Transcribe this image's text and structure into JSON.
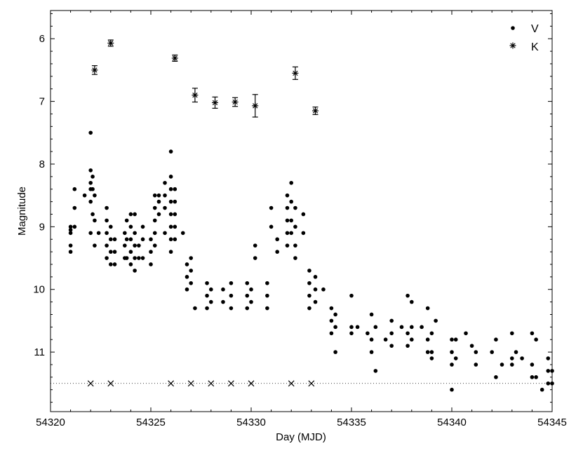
{
  "chart_data": {
    "type": "scatter",
    "xlabel": "Day (MJD)",
    "ylabel": "Magnitude",
    "xlim": [
      54320,
      54345
    ],
    "ylim": [
      5.55,
      11.95
    ],
    "y_inverted": true,
    "grid": false,
    "legend_position": "top-right",
    "x_ticks": [
      "54320",
      "54325",
      "54330",
      "54335",
      "54340",
      "54345"
    ],
    "y_ticks": [
      "6",
      "7",
      "8",
      "9",
      "10",
      "11"
    ],
    "x_tick_values": [
      54320,
      54325,
      54330,
      54335,
      54340,
      54345
    ],
    "y_tick_values": [
      6,
      7,
      8,
      9,
      10,
      11
    ],
    "series": [
      {
        "name": "V",
        "marker": "dot",
        "columns": [
          {
            "x": 54321.0,
            "y": [
              9.0,
              9.05,
              9.1,
              9.3,
              9.4
            ]
          },
          {
            "x": 54321.2,
            "y": [
              8.4,
              8.7,
              9.0
            ]
          },
          {
            "x": 54321.7,
            "y": [
              8.5
            ]
          },
          {
            "x": 54322.0,
            "y": [
              7.5,
              8.1,
              8.3,
              8.4,
              8.6,
              9.1
            ]
          },
          {
            "x": 54322.1,
            "y": [
              8.2,
              8.4,
              8.8
            ]
          },
          {
            "x": 54322.2,
            "y": [
              8.5,
              8.9,
              9.3
            ]
          },
          {
            "x": 54322.4,
            "y": [
              9.1
            ]
          },
          {
            "x": 54322.8,
            "y": [
              8.7,
              8.9,
              9.1,
              9.3,
              9.5
            ]
          },
          {
            "x": 54323.0,
            "y": [
              9.0,
              9.2,
              9.4,
              9.6
            ]
          },
          {
            "x": 54323.2,
            "y": [
              9.2,
              9.4,
              9.6
            ]
          },
          {
            "x": 54323.7,
            "y": [
              9.1,
              9.3,
              9.5
            ]
          },
          {
            "x": 54323.8,
            "y": [
              8.9,
              9.2,
              9.5
            ]
          },
          {
            "x": 54324.0,
            "y": [
              8.8,
              9.0,
              9.2,
              9.4,
              9.6
            ]
          },
          {
            "x": 54324.2,
            "y": [
              8.8,
              9.1,
              9.3,
              9.5,
              9.7
            ]
          },
          {
            "x": 54324.4,
            "y": [
              9.3,
              9.5
            ]
          },
          {
            "x": 54324.6,
            "y": [
              9.0,
              9.2,
              9.5
            ]
          },
          {
            "x": 54325.0,
            "y": [
              9.2,
              9.4,
              9.6
            ]
          },
          {
            "x": 54325.2,
            "y": [
              8.5,
              8.7,
              8.9,
              9.1,
              9.3
            ]
          },
          {
            "x": 54325.4,
            "y": [
              8.5,
              8.6,
              8.8
            ]
          },
          {
            "x": 54325.7,
            "y": [
              8.3,
              8.5,
              8.7,
              9.1
            ]
          },
          {
            "x": 54326.0,
            "y": [
              7.8,
              8.2,
              8.4,
              8.6,
              8.8,
              9.0,
              9.2,
              9.4
            ]
          },
          {
            "x": 54326.2,
            "y": [
              8.4,
              8.6,
              8.8,
              9.0,
              9.2
            ]
          },
          {
            "x": 54326.6,
            "y": [
              9.1
            ]
          },
          {
            "x": 54326.8,
            "y": [
              9.6,
              9.8,
              10.0
            ]
          },
          {
            "x": 54327.0,
            "y": [
              9.5,
              9.7,
              9.9
            ]
          },
          {
            "x": 54327.2,
            "y": [
              10.3
            ]
          },
          {
            "x": 54327.8,
            "y": [
              9.9,
              10.1,
              10.3
            ]
          },
          {
            "x": 54328.0,
            "y": [
              10.0,
              10.2
            ]
          },
          {
            "x": 54328.6,
            "y": [
              10.0,
              10.2
            ]
          },
          {
            "x": 54329.0,
            "y": [
              9.9,
              10.1,
              10.3
            ]
          },
          {
            "x": 54329.8,
            "y": [
              9.9,
              10.1,
              10.3
            ]
          },
          {
            "x": 54330.0,
            "y": [
              10.0,
              10.2
            ]
          },
          {
            "x": 54330.2,
            "y": [
              9.3,
              9.5
            ]
          },
          {
            "x": 54330.8,
            "y": [
              9.9,
              10.1,
              10.3
            ]
          },
          {
            "x": 54331.0,
            "y": [
              8.7,
              9.0
            ]
          },
          {
            "x": 54331.3,
            "y": [
              9.2,
              9.4
            ]
          },
          {
            "x": 54331.8,
            "y": [
              8.5,
              8.7,
              8.9,
              9.1,
              9.3
            ]
          },
          {
            "x": 54332.0,
            "y": [
              8.3,
              8.6,
              8.9,
              9.1
            ]
          },
          {
            "x": 54332.2,
            "y": [
              8.7,
              9.0,
              9.3,
              9.5
            ]
          },
          {
            "x": 54332.6,
            "y": [
              8.8,
              9.1
            ]
          },
          {
            "x": 54332.9,
            "y": [
              9.7,
              9.9,
              10.1,
              10.3
            ]
          },
          {
            "x": 54333.2,
            "y": [
              9.8,
              10.0,
              10.2
            ]
          },
          {
            "x": 54333.6,
            "y": [
              10.0
            ]
          },
          {
            "x": 54334.0,
            "y": [
              10.3,
              10.5,
              10.7
            ]
          },
          {
            "x": 54334.2,
            "y": [
              10.4,
              10.6,
              11.0
            ]
          },
          {
            "x": 54335.0,
            "y": [
              10.1,
              10.6,
              10.7
            ]
          },
          {
            "x": 54335.3,
            "y": [
              10.6
            ]
          },
          {
            "x": 54335.8,
            "y": [
              10.7
            ]
          },
          {
            "x": 54336.0,
            "y": [
              10.4,
              10.8,
              11.0
            ]
          },
          {
            "x": 54336.2,
            "y": [
              10.6,
              11.3
            ]
          },
          {
            "x": 54336.7,
            "y": [
              10.8
            ]
          },
          {
            "x": 54337.0,
            "y": [
              10.5,
              10.7,
              10.9
            ]
          },
          {
            "x": 54337.5,
            "y": [
              10.6
            ]
          },
          {
            "x": 54337.8,
            "y": [
              10.1,
              10.7,
              10.9
            ]
          },
          {
            "x": 54338.0,
            "y": [
              10.2,
              10.6,
              10.8
            ]
          },
          {
            "x": 54338.5,
            "y": [
              10.6
            ]
          },
          {
            "x": 54338.8,
            "y": [
              10.3,
              10.8,
              11.0
            ]
          },
          {
            "x": 54339.0,
            "y": [
              10.7,
              11.0,
              11.1
            ]
          },
          {
            "x": 54339.2,
            "y": [
              10.5
            ]
          },
          {
            "x": 54340.0,
            "y": [
              10.8,
              11.0,
              11.2,
              11.6
            ]
          },
          {
            "x": 54340.2,
            "y": [
              10.8,
              11.1
            ]
          },
          {
            "x": 54340.7,
            "y": [
              10.7
            ]
          },
          {
            "x": 54341.0,
            "y": [
              10.9
            ]
          },
          {
            "x": 54341.2,
            "y": [
              11.0,
              11.2
            ]
          },
          {
            "x": 54342.0,
            "y": [
              11.0
            ]
          },
          {
            "x": 54342.2,
            "y": [
              10.8,
              11.4
            ]
          },
          {
            "x": 54342.5,
            "y": [
              11.2
            ]
          },
          {
            "x": 54343.0,
            "y": [
              10.7,
              11.1,
              11.2
            ]
          },
          {
            "x": 54343.2,
            "y": [
              11.0
            ]
          },
          {
            "x": 54343.5,
            "y": [
              11.1
            ]
          },
          {
            "x": 54344.0,
            "y": [
              10.7,
              11.2,
              11.4
            ]
          },
          {
            "x": 54344.2,
            "y": [
              10.8,
              11.4
            ]
          },
          {
            "x": 54344.5,
            "y": [
              11.6
            ]
          },
          {
            "x": 54344.8,
            "y": [
              11.1,
              11.3,
              11.5
            ]
          },
          {
            "x": 54345.0,
            "y": [
              11.3,
              11.5
            ]
          }
        ]
      },
      {
        "name": "K",
        "marker": "asterisk",
        "points": [
          {
            "x": 54322.2,
            "y": 6.5,
            "err": 0.07
          },
          {
            "x": 54323.0,
            "y": 6.07,
            "err": 0.05
          },
          {
            "x": 54326.2,
            "y": 6.31,
            "err": 0.05
          },
          {
            "x": 54327.2,
            "y": 6.9,
            "err": 0.11
          },
          {
            "x": 54328.2,
            "y": 7.02,
            "err": 0.09
          },
          {
            "x": 54329.2,
            "y": 7.01,
            "err": 0.07
          },
          {
            "x": 54330.2,
            "y": 7.07,
            "err": 0.18
          },
          {
            "x": 54332.2,
            "y": 6.55,
            "err": 0.1
          },
          {
            "x": 54333.2,
            "y": 7.15,
            "err": 0.06
          }
        ]
      },
      {
        "marker": "cross",
        "points": [
          {
            "x": 54322.0,
            "y": 11.5
          },
          {
            "x": 54323.0,
            "y": 11.5
          },
          {
            "x": 54326.0,
            "y": 11.5
          },
          {
            "x": 54327.0,
            "y": 11.5
          },
          {
            "x": 54328.0,
            "y": 11.5
          },
          {
            "x": 54329.0,
            "y": 11.5
          },
          {
            "x": 54330.0,
            "y": 11.5
          },
          {
            "x": 54332.0,
            "y": 11.5
          },
          {
            "x": 54333.0,
            "y": 11.5
          }
        ]
      }
    ],
    "reference_line": {
      "y": 11.5,
      "style": "dotted"
    }
  }
}
